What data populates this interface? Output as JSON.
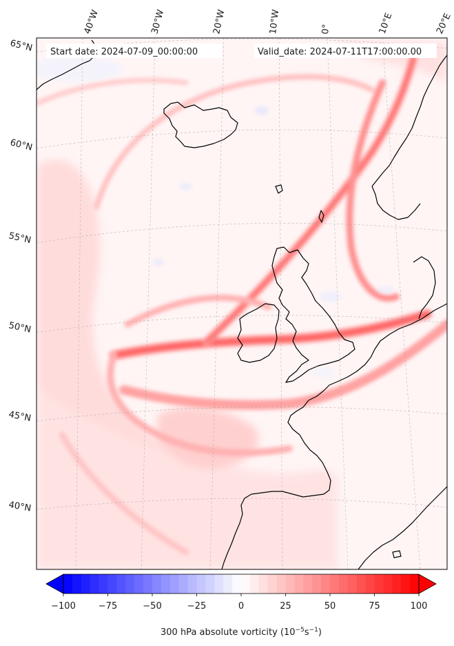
{
  "map": {
    "start_label": "Start date: 2024-07-09_00:00:00",
    "valid_label": "Valid_date: 2024-07-11T17:00:00.00",
    "lon_labels": [
      "40°W",
      "30°W",
      "20°W",
      "10°W",
      "0°",
      "10°E",
      "20°E"
    ],
    "lat_labels": [
      "65°N",
      "60°N",
      "55°N",
      "50°N",
      "45°N",
      "40°N"
    ],
    "colors": {
      "negative": "#0000ff",
      "neutral": "#ffffff",
      "positive": "#ff0000",
      "coast": "#000000"
    }
  },
  "colorbar": {
    "min": -100,
    "max": 100,
    "levels": 40,
    "extend": "both",
    "tick_labels": [
      "−100",
      "−75",
      "−50",
      "−25",
      "0",
      "25",
      "50",
      "75",
      "100"
    ],
    "label_prefix": "300 hPa absolute vorticity (10",
    "label_exp1": "−5",
    "label_mid": "s",
    "label_exp2": "−1",
    "label_suffix": ")"
  }
}
